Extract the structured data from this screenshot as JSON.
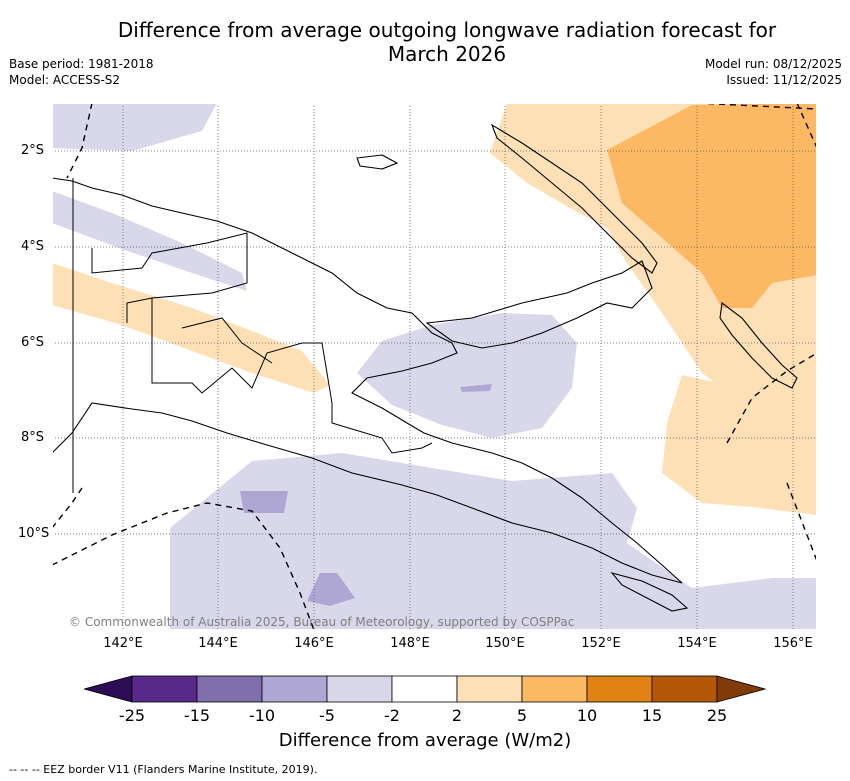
{
  "title": {
    "line1": "Difference from average outgoing longwave radiation forecast for",
    "line2": "March 2026"
  },
  "meta": {
    "base_period": "Base period: 1981-2018",
    "model": "Model: ACCESS-S2",
    "model_run": "Model run: 08/12/2025",
    "issued": "Issued: 11/12/2025"
  },
  "map": {
    "copyright": "© Commonwealth of Australia 2025, Bureau of Meteorology, supported by COSPPac",
    "lat_labels": [
      "2°S",
      "4°S",
      "6°S",
      "8°S",
      "10°S"
    ],
    "lon_labels": [
      "142°E",
      "144°E",
      "146°E",
      "148°E",
      "150°E",
      "152°E",
      "154°E",
      "156°E"
    ]
  },
  "colorbar": {
    "ticks": [
      "-25",
      "-15",
      "-10",
      "-5",
      "-2",
      "2",
      "5",
      "10",
      "15",
      "25"
    ],
    "colors": [
      "#2d0d55",
      "#5a2a8a",
      "#7f6fad",
      "#aea7d4",
      "#d8d8ea",
      "#ffffff",
      "#fee0b6",
      "#fdb863",
      "#e08214",
      "#b35806",
      "#7f3b08"
    ],
    "label": "Difference from average (W/m2)"
  },
  "legend": {
    "eez_note": "--  --  -- EEZ border V11 (Flanders Marine Institute, 2019)."
  }
}
